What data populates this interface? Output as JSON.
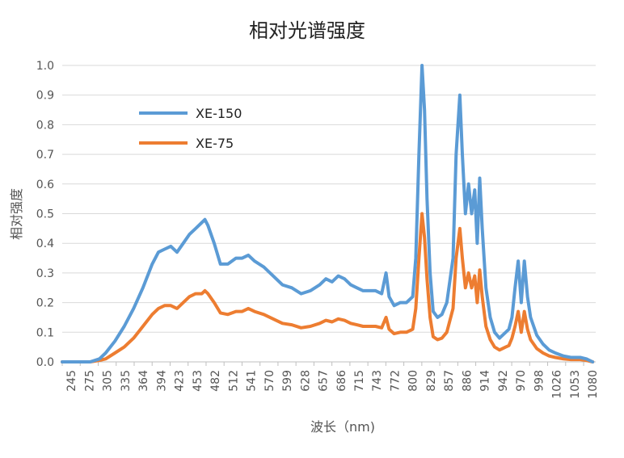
{
  "chart_data": {
    "type": "line",
    "title": "相对光谱强度",
    "xlabel": "波长（nm)",
    "ylabel": "相对强度",
    "x_ticks": [
      245,
      275,
      305,
      335,
      364,
      394,
      423,
      453,
      482,
      512,
      541,
      570,
      599,
      628,
      657,
      686,
      715,
      743,
      772,
      800,
      829,
      857,
      886,
      914,
      942,
      970,
      998,
      1026,
      1053,
      1080
    ],
    "xlim": [
      245,
      1105
    ],
    "ylim": [
      0,
      1.0
    ],
    "y_ticks": [
      0.0,
      0.1,
      0.2,
      0.3,
      0.4,
      0.5,
      0.6,
      0.7,
      0.8,
      0.9,
      1.0
    ],
    "y_tick_labels": [
      "0.0",
      "0.1",
      "0.2",
      "0.3",
      "0.4",
      "0.5",
      "0.6",
      "0.7",
      "0.8",
      "0.9",
      "1.0"
    ],
    "grid": true,
    "legend_position": "top-left",
    "series": [
      {
        "name": "XE-150",
        "color": "#5b9bd5",
        "x": [
          245,
          290,
          305,
          315,
          330,
          345,
          360,
          375,
          390,
          400,
          410,
          420,
          430,
          440,
          450,
          460,
          470,
          475,
          480,
          490,
          500,
          512,
          525,
          535,
          545,
          555,
          570,
          585,
          600,
          615,
          630,
          645,
          660,
          670,
          680,
          690,
          700,
          710,
          720,
          730,
          740,
          750,
          760,
          767,
          772,
          780,
          790,
          800,
          810,
          815,
          820,
          825,
          829,
          833,
          838,
          843,
          850,
          857,
          865,
          875,
          880,
          886,
          890,
          895,
          900,
          905,
          910,
          914,
          918,
          922,
          928,
          935,
          942,
          950,
          960,
          965,
          970,
          975,
          980,
          985,
          990,
          995,
          1000,
          1010,
          1020,
          1030,
          1040,
          1053,
          1065,
          1080,
          1090,
          1100
        ],
        "y": [
          0.0,
          0.0,
          0.01,
          0.03,
          0.07,
          0.12,
          0.18,
          0.25,
          0.33,
          0.37,
          0.38,
          0.39,
          0.37,
          0.4,
          0.43,
          0.45,
          0.47,
          0.48,
          0.46,
          0.4,
          0.33,
          0.33,
          0.35,
          0.35,
          0.36,
          0.34,
          0.32,
          0.29,
          0.26,
          0.25,
          0.23,
          0.24,
          0.26,
          0.28,
          0.27,
          0.29,
          0.28,
          0.26,
          0.25,
          0.24,
          0.24,
          0.24,
          0.23,
          0.3,
          0.22,
          0.19,
          0.2,
          0.2,
          0.22,
          0.35,
          0.7,
          1.0,
          0.85,
          0.55,
          0.3,
          0.17,
          0.15,
          0.16,
          0.2,
          0.35,
          0.7,
          0.9,
          0.7,
          0.5,
          0.6,
          0.5,
          0.58,
          0.4,
          0.62,
          0.45,
          0.25,
          0.15,
          0.1,
          0.08,
          0.1,
          0.11,
          0.15,
          0.25,
          0.34,
          0.2,
          0.34,
          0.22,
          0.15,
          0.09,
          0.06,
          0.04,
          0.03,
          0.02,
          0.015,
          0.015,
          0.01,
          0.0
        ]
      },
      {
        "name": "XE-75",
        "color": "#ed7d31",
        "x": [
          245,
          290,
          305,
          315,
          330,
          345,
          360,
          375,
          390,
          400,
          410,
          420,
          430,
          440,
          450,
          460,
          470,
          475,
          480,
          490,
          500,
          512,
          525,
          535,
          545,
          555,
          570,
          585,
          600,
          615,
          630,
          645,
          660,
          670,
          680,
          690,
          700,
          710,
          720,
          730,
          740,
          750,
          760,
          767,
          772,
          780,
          790,
          800,
          810,
          815,
          820,
          825,
          829,
          833,
          838,
          843,
          850,
          857,
          865,
          875,
          880,
          886,
          890,
          895,
          900,
          905,
          910,
          914,
          918,
          922,
          928,
          935,
          942,
          950,
          960,
          965,
          970,
          975,
          980,
          985,
          990,
          995,
          1000,
          1010,
          1020,
          1030,
          1040,
          1053,
          1065,
          1080,
          1090,
          1100
        ],
        "y": [
          0.0,
          0.0,
          0.005,
          0.01,
          0.03,
          0.05,
          0.08,
          0.12,
          0.16,
          0.18,
          0.19,
          0.19,
          0.18,
          0.2,
          0.22,
          0.23,
          0.23,
          0.24,
          0.23,
          0.2,
          0.165,
          0.16,
          0.17,
          0.17,
          0.18,
          0.17,
          0.16,
          0.145,
          0.13,
          0.125,
          0.115,
          0.12,
          0.13,
          0.14,
          0.135,
          0.145,
          0.14,
          0.13,
          0.125,
          0.12,
          0.12,
          0.12,
          0.115,
          0.15,
          0.11,
          0.095,
          0.1,
          0.1,
          0.11,
          0.18,
          0.35,
          0.5,
          0.42,
          0.28,
          0.15,
          0.085,
          0.075,
          0.08,
          0.1,
          0.18,
          0.35,
          0.45,
          0.35,
          0.25,
          0.3,
          0.25,
          0.29,
          0.2,
          0.31,
          0.22,
          0.12,
          0.075,
          0.05,
          0.04,
          0.05,
          0.055,
          0.08,
          0.12,
          0.17,
          0.1,
          0.17,
          0.11,
          0.075,
          0.045,
          0.03,
          0.02,
          0.015,
          0.01,
          0.008,
          0.008,
          0.005,
          0.0
        ]
      }
    ]
  }
}
